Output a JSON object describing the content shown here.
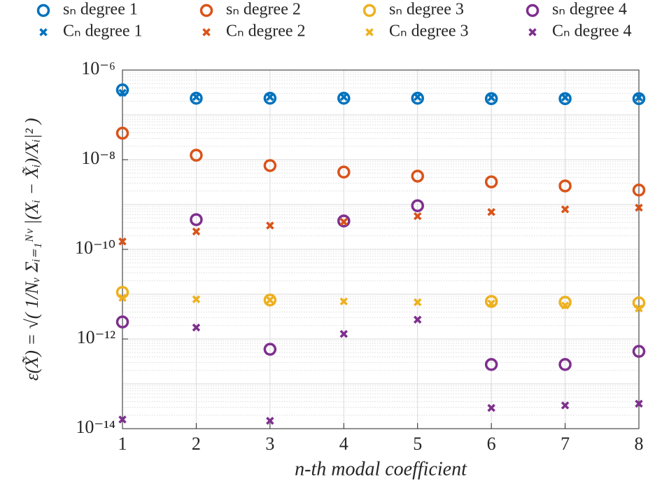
{
  "chart_data": {
    "type": "scatter",
    "xlabel": "n-th modal coefficient",
    "ylabel": "ε(X̃) = √( 1/Nᵥ Σᵢ₌₁ᴺᵛ |(Xᵢ − X̃ᵢ)/Xᵢ|² )",
    "x": [
      1,
      2,
      3,
      4,
      5,
      6,
      7,
      8
    ],
    "xlim": [
      1,
      8
    ],
    "xticks": [
      1,
      2,
      3,
      4,
      5,
      6,
      7,
      8
    ],
    "ylim": [
      1e-14,
      1e-06
    ],
    "yticks": [
      {
        "value": 1e-14,
        "label": "10⁻¹⁴"
      },
      {
        "value": 1e-12,
        "label": "10⁻¹²"
      },
      {
        "value": 1e-10,
        "label": "10⁻¹⁰"
      },
      {
        "value": 1e-08,
        "label": "10⁻⁸"
      },
      {
        "value": 1e-06,
        "label": "10⁻⁶"
      }
    ],
    "log_y": true,
    "grid": true,
    "minor_grid": true,
    "legend": "top",
    "series": [
      {
        "name": "sₙ degree 1",
        "marker": "o",
        "color": "#0072BD",
        "values": [
          3.6e-07,
          2.35e-07,
          2.35e-07,
          2.35e-07,
          2.35e-07,
          2.3e-07,
          2.3e-07,
          2.3e-07
        ]
      },
      {
        "name": "sₙ degree 2",
        "marker": "o",
        "color": "#D95319",
        "values": [
          3.9e-08,
          1.26e-08,
          7.4e-09,
          5.3e-09,
          4.3e-09,
          3.2e-09,
          2.6e-09,
          2.1e-09
        ]
      },
      {
        "name": "sₙ degree 3",
        "marker": "o",
        "color": "#EDB120",
        "values": [
          1.1e-11,
          null,
          7.4e-12,
          null,
          null,
          6.9e-12,
          6.6e-12,
          6.4e-12
        ]
      },
      {
        "name": "sₙ degree 4",
        "marker": "o",
        "color": "#7E2F8E",
        "values": [
          2.4e-12,
          4.6e-10,
          5.9e-13,
          4.3e-10,
          9.4e-10,
          2.7e-13,
          2.7e-13,
          5.3e-13
        ]
      },
      {
        "name": "Cₙ degree 1",
        "marker": "x",
        "color": "#0072BD",
        "values": [
          3.1e-07,
          2.5e-07,
          2.5e-07,
          2.5e-07,
          2.5e-07,
          2.45e-07,
          2.45e-07,
          2.45e-07
        ]
      },
      {
        "name": "Cₙ degree 2",
        "marker": "x",
        "color": "#D95319",
        "values": [
          1.5e-10,
          2.5e-10,
          3.4e-10,
          4.1e-10,
          5.5e-10,
          6.8e-10,
          7.8e-10,
          8.5e-10
        ]
      },
      {
        "name": "Cₙ degree 3",
        "marker": "x",
        "color": "#EDB120",
        "values": [
          8.3e-12,
          7.7e-12,
          7.4e-12,
          6.9e-12,
          6.6e-12,
          6.2e-12,
          5.6e-12,
          4.8e-12
        ]
      },
      {
        "name": "Cₙ degree 4",
        "marker": "x",
        "color": "#7E2F8E",
        "values": [
          1.6e-14,
          1.8e-12,
          1.5e-14,
          1.3e-12,
          2.7e-12,
          2.9e-14,
          3.3e-14,
          3.6e-14
        ]
      }
    ]
  }
}
